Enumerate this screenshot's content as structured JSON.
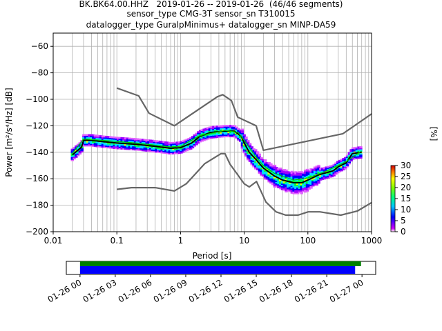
{
  "title_lines": [
    "BK.BK64.00.HHZ   2019-01-26 -- 2019-01-26  (46/46 segments)",
    "sensor_type CMG-3T sensor_sn T310015",
    "datalogger_type GuralpMinimus+ datalogger_sn MINP-DA59"
  ],
  "chart_data": [
    {
      "type": "heatmap",
      "title": "",
      "xlabel": "Period [s]",
      "ylabel": "Power [m²/s⁴/Hz] [dB]",
      "xscale": "log",
      "xlim": [
        0.01,
        1000
      ],
      "ylim": [
        -200,
        -50
      ],
      "x_ticks": [
        "0.01",
        "0.1",
        "1",
        "10",
        "100",
        "1000"
      ],
      "y_ticks": [
        "-200",
        "-180",
        "-160",
        "-140",
        "-120",
        "-100",
        "-80",
        "-60"
      ],
      "grid": true,
      "colorbar": {
        "label": "[%]",
        "range": [
          0,
          30
        ],
        "ticks": [
          "0",
          "5",
          "10",
          "15",
          "20",
          "25",
          "30"
        ]
      },
      "series": [
        {
          "name": "",
          "role": "NHNM",
          "color": "#666666",
          "points": [
            [
              0.1,
              -91.5
            ],
            [
              0.22,
              -97.4
            ],
            [
              0.32,
              -110.5
            ],
            [
              0.8,
              -120
            ],
            [
              3.8,
              -98
            ],
            [
              4.6,
              -96.5
            ],
            [
              6.3,
              -101
            ],
            [
              7.9,
              -113.5
            ],
            [
              15.4,
              -120
            ],
            [
              20,
              -138.5
            ],
            [
              354.8,
              -126
            ],
            [
              1000,
              -111
            ]
          ]
        },
        {
          "name": "",
          "role": "NLNM",
          "color": "#666666",
          "points": [
            [
              0.1,
              -168
            ],
            [
              0.17,
              -166.7
            ],
            [
              0.4,
              -166.7
            ],
            [
              0.8,
              -169.2
            ],
            [
              1.24,
              -163.7
            ],
            [
              2.4,
              -148.6
            ],
            [
              4.3,
              -141.1
            ],
            [
              5,
              -141.1
            ],
            [
              6,
              -149
            ],
            [
              10,
              -163.8
            ],
            [
              12,
              -166.2
            ],
            [
              15.6,
              -162.1
            ],
            [
              21.9,
              -177.5
            ],
            [
              31.6,
              -185
            ],
            [
              45,
              -187.5
            ],
            [
              70,
              -187.5
            ],
            [
              101,
              -185
            ],
            [
              154,
              -185
            ],
            [
              328,
              -187.5
            ],
            [
              600,
              -184.4
            ],
            [
              1000,
              -178
            ]
          ]
        },
        {
          "name": "",
          "role": "mode",
          "color": "#000000",
          "points": [
            [
              0.02,
              -142
            ],
            [
              0.025,
              -138
            ],
            [
              0.028,
              -136
            ],
            [
              0.03,
              -131
            ],
            [
              0.04,
              -131
            ],
            [
              0.06,
              -132
            ],
            [
              0.1,
              -133
            ],
            [
              0.2,
              -134
            ],
            [
              0.4,
              -135.5
            ],
            [
              0.7,
              -137
            ],
            [
              1,
              -136.5
            ],
            [
              1.5,
              -133
            ],
            [
              2,
              -128
            ],
            [
              3,
              -125
            ],
            [
              5,
              -124
            ],
            [
              7,
              -124
            ],
            [
              9,
              -128
            ],
            [
              10,
              -133
            ],
            [
              12,
              -140
            ],
            [
              15,
              -145
            ],
            [
              20,
              -152
            ],
            [
              30,
              -158
            ],
            [
              40,
              -161
            ],
            [
              60,
              -163
            ],
            [
              80,
              -163
            ],
            [
              100,
              -161
            ],
            [
              150,
              -157
            ],
            [
              250,
              -154
            ],
            [
              300,
              -151
            ],
            [
              400,
              -148
            ],
            [
              500,
              -141
            ],
            [
              700,
              -140
            ]
          ]
        },
        {
          "name": "",
          "role": "median",
          "color": "#00cc00",
          "points": [
            [
              0.02,
              -141
            ],
            [
              0.03,
              -130
            ],
            [
              0.06,
              -131
            ],
            [
              0.2,
              -133
            ],
            [
              0.7,
              -136
            ],
            [
              1,
              -135.5
            ],
            [
              2,
              -127.5
            ],
            [
              5,
              -123.5
            ],
            [
              8,
              -125
            ],
            [
              10,
              -131
            ],
            [
              15,
              -143
            ],
            [
              20,
              -150
            ],
            [
              30,
              -156
            ],
            [
              60,
              -161
            ],
            [
              100,
              -159.5
            ],
            [
              200,
              -154
            ],
            [
              400,
              -147
            ],
            [
              700,
              -139
            ]
          ]
        }
      ]
    },
    {
      "type": "bar",
      "title": "",
      "xlabel": "",
      "ylabel": "",
      "orientation": "horizontal",
      "x_ticks": [
        "01-26 00",
        "01-26 03",
        "01-26 06",
        "01-26 09",
        "01-26 12",
        "01-26 15",
        "01-26 18",
        "01-26 21",
        "01-27 00"
      ],
      "xlim": [
        "2019-01-25 22:50",
        "2019-01-27 01:10"
      ],
      "series": [
        {
          "name": "",
          "color": "#008000",
          "start": "2019-01-26 00:00",
          "end": "2019-01-26 23:55"
        },
        {
          "name": "",
          "color": "#0000ff",
          "start": "2019-01-26 00:00",
          "end": "2019-01-26 23:25"
        }
      ]
    }
  ]
}
